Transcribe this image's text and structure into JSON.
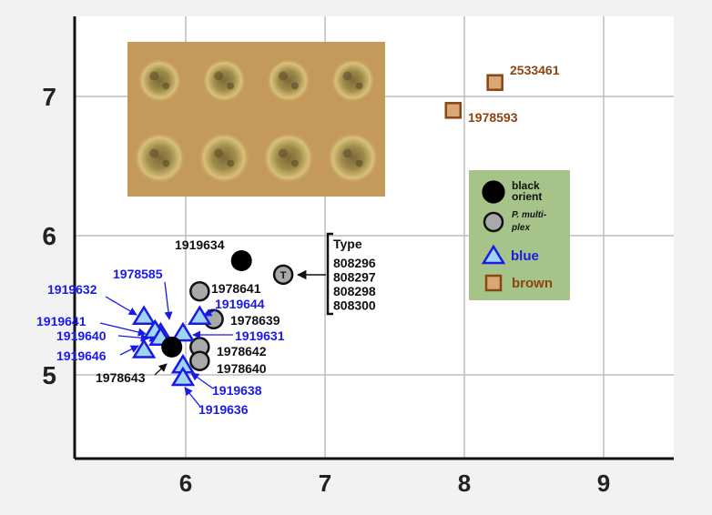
{
  "chart_data": {
    "type": "scatter",
    "title": "",
    "xlabel": "",
    "ylabel": "",
    "xlim": [
      5.2,
      9.5
    ],
    "ylim": [
      4.4,
      7.55
    ],
    "x_ticks": [
      6,
      7,
      8,
      9
    ],
    "y_ticks": [
      5,
      6,
      7
    ],
    "x_tick_labels": [
      "6",
      "7",
      "8",
      "9"
    ],
    "y_tick_labels": [
      "5",
      "6",
      "7"
    ],
    "grid": true,
    "legend_position": "right",
    "colors": {
      "black": "#000000",
      "grey": "#a9a9a9",
      "blue": "#1a1ae6",
      "blue_fill": "#9fd4f2",
      "brown": "#8b4513",
      "brown_fill": "#d9a877",
      "legend_bg": "#a6c389",
      "photo_bg": "#c49a5a"
    },
    "series": [
      {
        "name": "black orient",
        "marker": "circle-black",
        "points": [
          {
            "x": 6.4,
            "y": 5.82,
            "label": "1919634"
          },
          {
            "x": 5.9,
            "y": 5.2,
            "label": "1978643"
          }
        ]
      },
      {
        "name": "P. multiplex",
        "marker": "circle-grey",
        "points": [
          {
            "x": 6.7,
            "y": 5.72,
            "label": "Type 808296 808297 808298 808300"
          },
          {
            "x": 6.1,
            "y": 5.6,
            "label": "1978641"
          },
          {
            "x": 6.2,
            "y": 5.4,
            "label": "1978639"
          },
          {
            "x": 6.1,
            "y": 5.2,
            "label": "1978642"
          },
          {
            "x": 6.1,
            "y": 5.1,
            "label": "1978640"
          }
        ]
      },
      {
        "name": "blue",
        "marker": "triangle-blue",
        "points": [
          {
            "x": 5.7,
            "y": 5.42,
            "label": "1919632"
          },
          {
            "x": 5.82,
            "y": 5.3,
            "label": "1978585"
          },
          {
            "x": 5.78,
            "y": 5.32,
            "label": "1919641"
          },
          {
            "x": 5.82,
            "y": 5.27,
            "label": "1919640"
          },
          {
            "x": 5.7,
            "y": 5.18,
            "label": "1919646"
          },
          {
            "x": 6.1,
            "y": 5.42,
            "label": "1919644"
          },
          {
            "x": 5.98,
            "y": 5.3,
            "label": "1919631"
          },
          {
            "x": 5.98,
            "y": 5.07,
            "label": "1919638"
          },
          {
            "x": 5.98,
            "y": 4.98,
            "label": "1919636"
          }
        ]
      },
      {
        "name": "brown",
        "marker": "square-brown",
        "points": [
          {
            "x": 8.22,
            "y": 7.1,
            "label": "2533461"
          },
          {
            "x": 7.92,
            "y": 6.9,
            "label": "1978593"
          }
        ]
      }
    ],
    "legend": [
      {
        "marker": "circle-black",
        "label_lines": [
          "black",
          "orient"
        ]
      },
      {
        "marker": "circle-grey",
        "label_lines": [
          "P. multi-",
          "plex"
        ]
      },
      {
        "marker": "triangle-blue",
        "label_lines": [
          "blue"
        ]
      },
      {
        "marker": "square-brown",
        "label_lines": [
          "brown"
        ]
      }
    ],
    "type_annotation": {
      "marker_text": "T",
      "header": "Type",
      "specimens": [
        "808296",
        "808297",
        "808298",
        "808300"
      ]
    },
    "inset_photo": {
      "rows": 2,
      "cols": 4
    }
  }
}
